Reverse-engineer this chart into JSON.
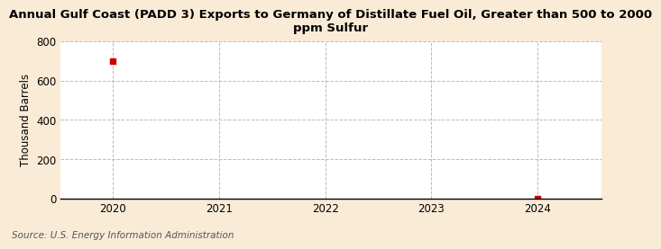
{
  "title": "Annual Gulf Coast (PADD 3) Exports to Germany of Distillate Fuel Oil, Greater than 500 to 2000\nppm Sulfur",
  "ylabel": "Thousand Barrels",
  "source": "Source: U.S. Energy Information Administration",
  "background_color": "#faebd7",
  "plot_bg_color": "#ffffff",
  "x_values": [
    2020,
    2021,
    2022,
    2023,
    2024
  ],
  "y_values": [
    700,
    null,
    null,
    null,
    2
  ],
  "data_color": "#cc0000",
  "xlim": [
    2019.5,
    2024.6
  ],
  "ylim": [
    0,
    800
  ],
  "yticks": [
    0,
    200,
    400,
    600,
    800
  ],
  "xticks": [
    2020,
    2021,
    2022,
    2023,
    2024
  ],
  "grid_color": "#bbbbbb",
  "title_fontsize": 9.5,
  "axis_fontsize": 8.5,
  "source_fontsize": 7.5,
  "marker_size": 4
}
